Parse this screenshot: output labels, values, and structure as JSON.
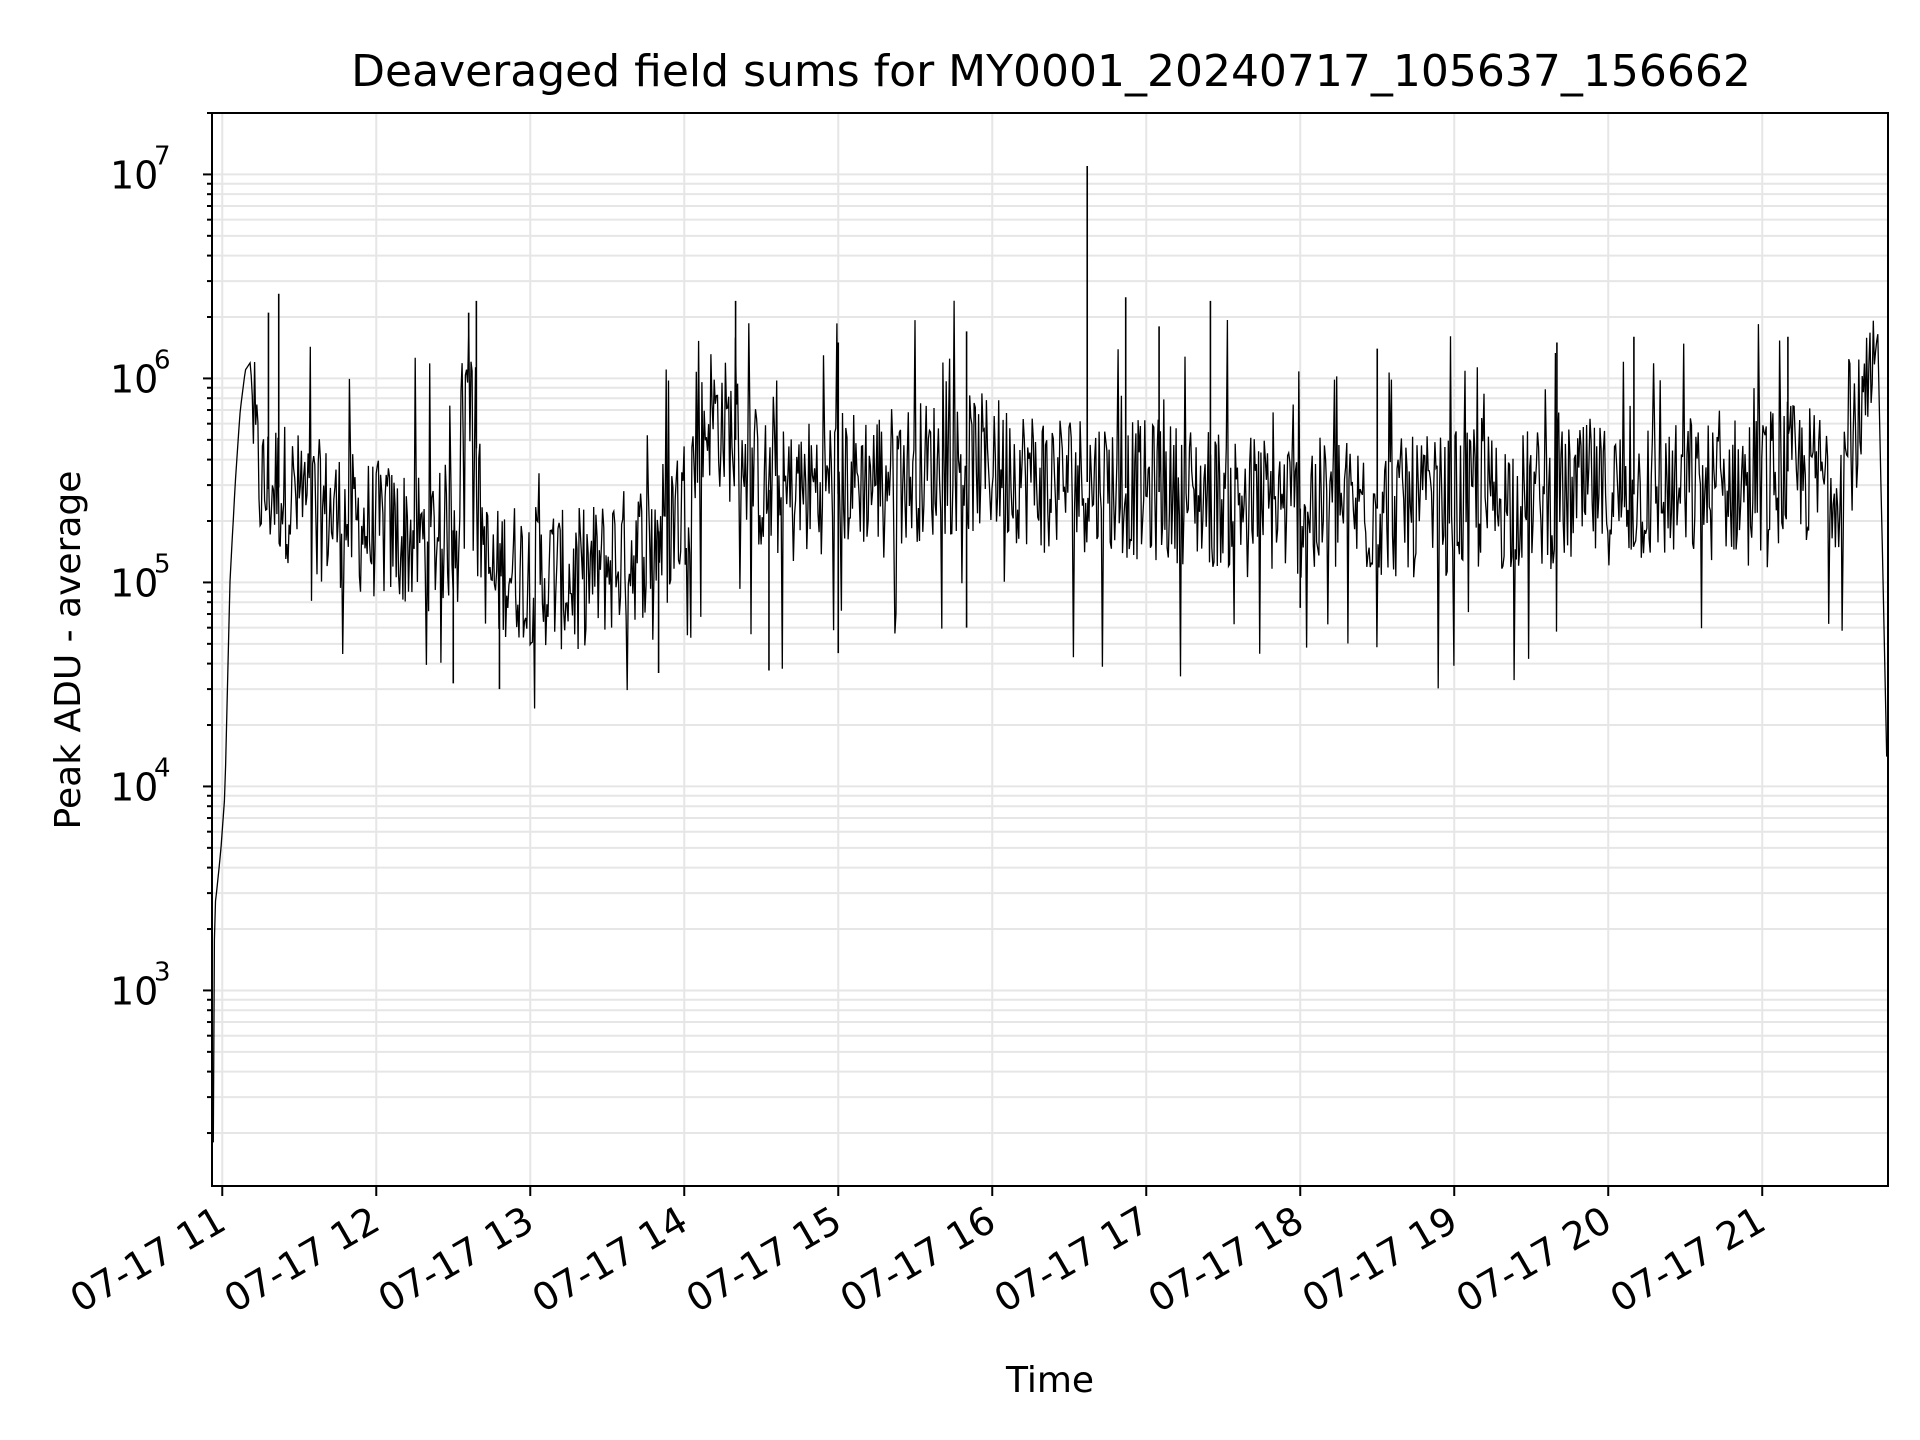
{
  "chart_data": {
    "type": "line",
    "title": "Deaveraged field sums for MY0001_20240717_105637_156662",
    "xlabel": "Time",
    "ylabel": "Peak ADU - average",
    "yscale": "log",
    "ylim": [
      110,
      20000000
    ],
    "y_ticks": [
      {
        "value": 1000,
        "base": "10",
        "exp": "3"
      },
      {
        "value": 10000,
        "base": "10",
        "exp": "4"
      },
      {
        "value": 100000,
        "base": "10",
        "exp": "5"
      },
      {
        "value": 1000000,
        "base": "10",
        "exp": "6"
      },
      {
        "value": 10000000,
        "base": "10",
        "exp": "7"
      }
    ],
    "xlim": [
      "2024-07-17 10:56:00",
      "2024-07-17 21:49:00"
    ],
    "x_ticks": [
      {
        "time": "2024-07-17 11:00",
        "label": "07-17 11"
      },
      {
        "time": "2024-07-17 12:00",
        "label": "07-17 12"
      },
      {
        "time": "2024-07-17 13:00",
        "label": "07-17 13"
      },
      {
        "time": "2024-07-17 14:00",
        "label": "07-17 14"
      },
      {
        "time": "2024-07-17 15:00",
        "label": "07-17 15"
      },
      {
        "time": "2024-07-17 16:00",
        "label": "07-17 16"
      },
      {
        "time": "2024-07-17 17:00",
        "label": "07-17 17"
      },
      {
        "time": "2024-07-17 18:00",
        "label": "07-17 18"
      },
      {
        "time": "2024-07-17 19:00",
        "label": "07-17 19"
      },
      {
        "time": "2024-07-17 20:00",
        "label": "07-17 20"
      },
      {
        "time": "2024-07-17 21:00",
        "label": "07-17 21"
      }
    ],
    "grid": true,
    "line_color": "#000000",
    "grid_color": "#e6e6e6",
    "series": [
      {
        "x": [
          "2024-07-17 10:56:30",
          "2024-07-17 10:57:00",
          "2024-07-17 10:58:00",
          "2024-07-17 10:59:30",
          "2024-07-17 11:01:00",
          "2024-07-17 11:03:00",
          "2024-07-17 11:05:00",
          "2024-07-17 11:07:00",
          "2024-07-17 11:09:00",
          "2024-07-17 11:11:00",
          "2024-07-17 11:12:00",
          "2024-07-17 11:13:00",
          "2024-07-17 11:14:00",
          "2024-07-17 11:15:00",
          "2024-07-17 11:17:00",
          "2024-07-17 11:20:00",
          "2024-07-17 11:25:00",
          "2024-07-17 11:30:00",
          "2024-07-17 11:40:00",
          "2024-07-17 11:50:00",
          "2024-07-17 12:00:00",
          "2024-07-17 12:10:00",
          "2024-07-17 12:20:00",
          "2024-07-17 12:30:00",
          "2024-07-17 12:37:00",
          "2024-07-17 12:40:00",
          "2024-07-17 12:43:00",
          "2024-07-17 12:46:00",
          "2024-07-17 12:50:00",
          "2024-07-17 13:00:00",
          "2024-07-17 13:15:00",
          "2024-07-17 13:30:00",
          "2024-07-17 13:45:00",
          "2024-07-17 14:00:00",
          "2024-07-17 14:10:00",
          "2024-07-17 14:20:00",
          "2024-07-17 14:30:00",
          "2024-07-17 14:40:00",
          "2024-07-17 14:50:00",
          "2024-07-17 15:00:00",
          "2024-07-17 15:15:00",
          "2024-07-17 15:30:00",
          "2024-07-17 15:45:00",
          "2024-07-17 16:00:00",
          "2024-07-17 16:15:00",
          "2024-07-17 16:30:00",
          "2024-07-17 16:45:00",
          "2024-07-17 17:00:00",
          "2024-07-17 17:20:00",
          "2024-07-17 17:40:00",
          "2024-07-17 18:00:00",
          "2024-07-17 18:20:00",
          "2024-07-17 18:40:00",
          "2024-07-17 19:00:00",
          "2024-07-17 19:20:00",
          "2024-07-17 19:40:00",
          "2024-07-17 20:00:00",
          "2024-07-17 20:20:00",
          "2024-07-17 20:40:00",
          "2024-07-17 21:00:00",
          "2024-07-17 21:10:00",
          "2024-07-17 21:20:00",
          "2024-07-17 21:30:00",
          "2024-07-17 21:35:00",
          "2024-07-17 21:40:00",
          "2024-07-17 21:43:00",
          "2024-07-17 21:45:00",
          "2024-07-17 21:48:30"
        ],
        "y": [
          180,
          2500,
          3200,
          5000,
          9000,
          100000,
          300000,
          700000,
          1100000,
          1200000,
          700000,
          450000,
          350000,
          300000,
          280000,
          300000,
          280000,
          250000,
          220000,
          200000,
          180000,
          170000,
          160000,
          180000,
          1500000,
          250000,
          120000,
          100000,
          120000,
          110000,
          100000,
          120000,
          150000,
          250000,
          700000,
          500000,
          300000,
          250000,
          300000,
          320000,
          330000,
          350000,
          380000,
          380000,
          330000,
          320000,
          300000,
          280000,
          270000,
          250000,
          230000,
          230000,
          230000,
          240000,
          250000,
          260000,
          270000,
          270000,
          280000,
          320000,
          350000,
          330000,
          330000,
          500000,
          650000,
          1000000,
          1700000,
          14000
        ],
        "spikes": [
          {
            "x": "2024-07-17 11:22:00",
            "y": 2600000
          },
          {
            "x": "2024-07-17 11:18:00",
            "y": 2100000
          },
          {
            "x": "2024-07-17 12:39:00",
            "y": 2400000
          },
          {
            "x": "2024-07-17 12:36:00",
            "y": 2100000
          },
          {
            "x": "2024-07-17 14:20:00",
            "y": 2400000
          },
          {
            "x": "2024-07-17 15:00:00",
            "y": 1500000
          },
          {
            "x": "2024-07-17 15:50:00",
            "y": 1700000
          },
          {
            "x": "2024-07-17 16:37:00",
            "y": 11000000
          },
          {
            "x": "2024-07-17 16:52:00",
            "y": 2500000
          },
          {
            "x": "2024-07-17 17:05:00",
            "y": 1800000
          },
          {
            "x": "2024-07-17 17:25:00",
            "y": 2400000
          },
          {
            "x": "2024-07-17 18:30:00",
            "y": 1400000
          },
          {
            "x": "2024-07-17 19:40:00",
            "y": 1500000
          },
          {
            "x": "2024-07-17 20:10:00",
            "y": 1600000
          },
          {
            "x": "2024-07-17 21:10:00",
            "y": 1600000
          }
        ],
        "dips": [
          {
            "x": "2024-07-17 12:30:00",
            "y": 32000
          },
          {
            "x": "2024-07-17 12:48:00",
            "y": 30000
          },
          {
            "x": "2024-07-17 13:50:00",
            "y": 36000
          },
          {
            "x": "2024-07-17 14:33:00",
            "y": 37000
          },
          {
            "x": "2024-07-17 15:00:00",
            "y": 45000
          },
          {
            "x": "2024-07-17 15:50:00",
            "y": 60000
          },
          {
            "x": "2024-07-17 18:00:00",
            "y": 75000
          }
        ]
      }
    ]
  }
}
